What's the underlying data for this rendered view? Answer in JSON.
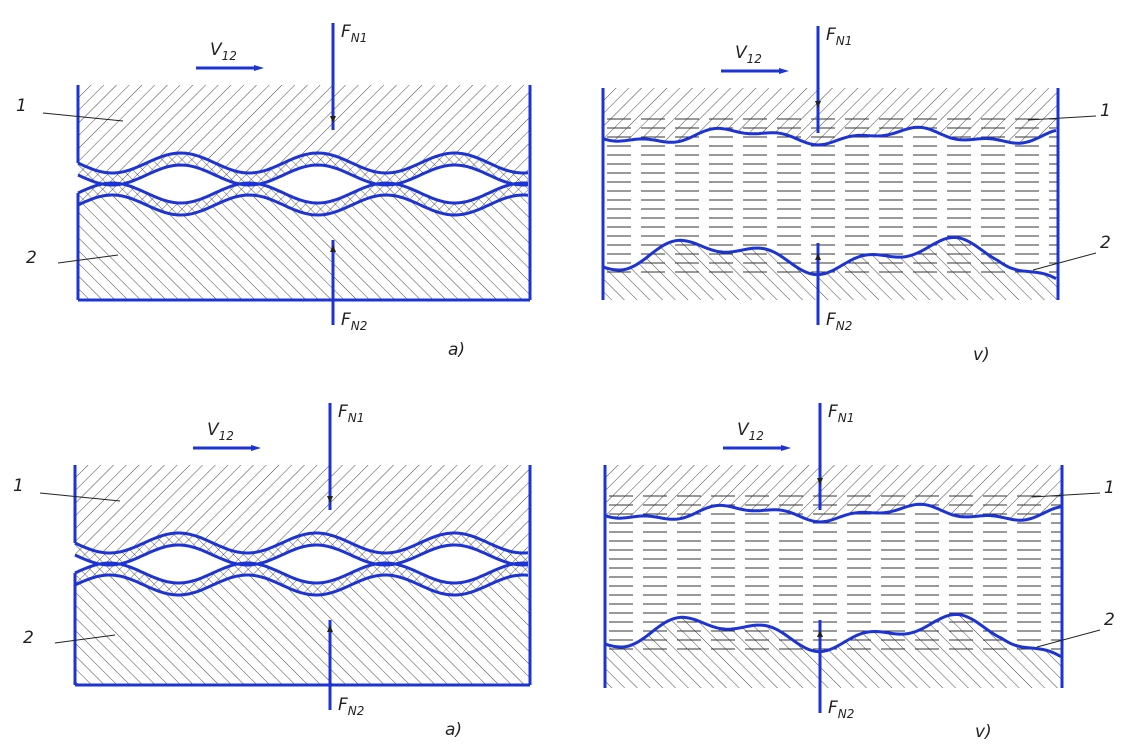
{
  "panels": [
    {
      "velocity": {
        "symbol": "V",
        "subscript": "12"
      },
      "force_top": {
        "symbol": "F",
        "subscript": "N1"
      },
      "force_bottom": {
        "symbol": "F",
        "subscript": "N2"
      },
      "body_upper": "1",
      "body_lower": "2",
      "caption": "a)"
    },
    {
      "velocity": {
        "symbol": "V",
        "subscript": "12"
      },
      "force_top": {
        "symbol": "F",
        "subscript": "N1"
      },
      "force_bottom": {
        "symbol": "F",
        "subscript": "N2"
      },
      "body_upper": "1",
      "body_lower": "2",
      "caption": "v)"
    },
    {
      "velocity": {
        "symbol": "V",
        "subscript": "12"
      },
      "force_top": {
        "symbol": "F",
        "subscript": "N1"
      },
      "force_bottom": {
        "symbol": "F",
        "subscript": "N2"
      },
      "body_upper": "1",
      "body_lower": "2",
      "caption": "a)"
    },
    {
      "velocity": {
        "symbol": "V",
        "subscript": "12"
      },
      "force_top": {
        "symbol": "F",
        "subscript": "N1"
      },
      "force_bottom": {
        "symbol": "F",
        "subscript": "N2"
      },
      "body_upper": "1",
      "body_lower": "2",
      "caption": "v)"
    }
  ]
}
